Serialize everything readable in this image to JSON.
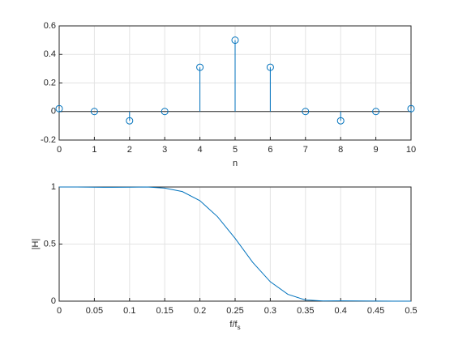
{
  "chart_data": [
    {
      "type": "stem",
      "xlabel": "n",
      "x": [
        0,
        1,
        2,
        3,
        4,
        5,
        6,
        7,
        8,
        9,
        10
      ],
      "values": [
        0.02,
        0,
        -0.065,
        0,
        0.31,
        0.5,
        0.31,
        0,
        -0.065,
        0,
        0.02
      ],
      "color": "#0072bd",
      "xlim": [
        0,
        10
      ],
      "xticks": [
        0,
        1,
        2,
        3,
        4,
        5,
        6,
        7,
        8,
        9,
        10
      ],
      "ylim": [
        -0.2,
        0.6
      ],
      "yticks": [
        -0.2,
        0,
        0.2,
        0.4,
        0.6
      ],
      "grid": true
    },
    {
      "type": "line",
      "xlabel": {
        "text": "f/f",
        "subscript": "s"
      },
      "ylabel": "|H|",
      "x": [
        0,
        0.025,
        0.05,
        0.075,
        0.1,
        0.125,
        0.15,
        0.175,
        0.2,
        0.225,
        0.25,
        0.275,
        0.3,
        0.325,
        0.35,
        0.375,
        0.4,
        0.425,
        0.45,
        0.475,
        0.5
      ],
      "values": [
        1,
        1,
        0.998,
        0.997,
        0.998,
        1,
        0.99,
        0.96,
        0.88,
        0.74,
        0.55,
        0.34,
        0.17,
        0.06,
        0.01,
        0.002,
        0.003,
        0.002,
        0.001,
        0,
        0
      ],
      "color": "#0072bd",
      "xlim": [
        0,
        0.5
      ],
      "xticks": [
        0,
        0.05,
        0.1,
        0.15,
        0.2,
        0.25,
        0.3,
        0.35,
        0.4,
        0.45,
        0.5
      ],
      "ylim": [
        0,
        1
      ],
      "yticks": [
        0,
        0.5,
        1
      ],
      "grid": true
    }
  ]
}
